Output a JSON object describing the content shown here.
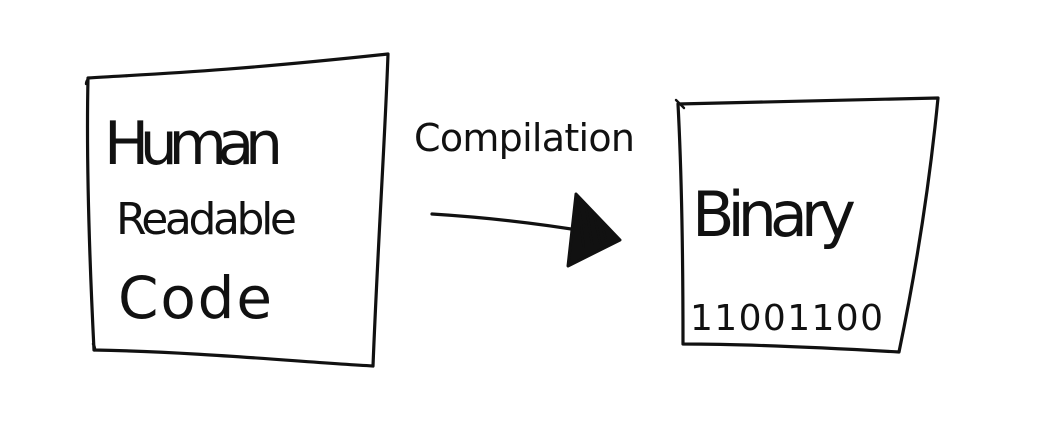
{
  "diagram": {
    "source_box": {
      "line1": "Human",
      "line2": "Readable",
      "line3": "Code"
    },
    "arrow_label": "Compilation",
    "target_box": {
      "line1": "Binary",
      "line2": "11001100"
    }
  }
}
